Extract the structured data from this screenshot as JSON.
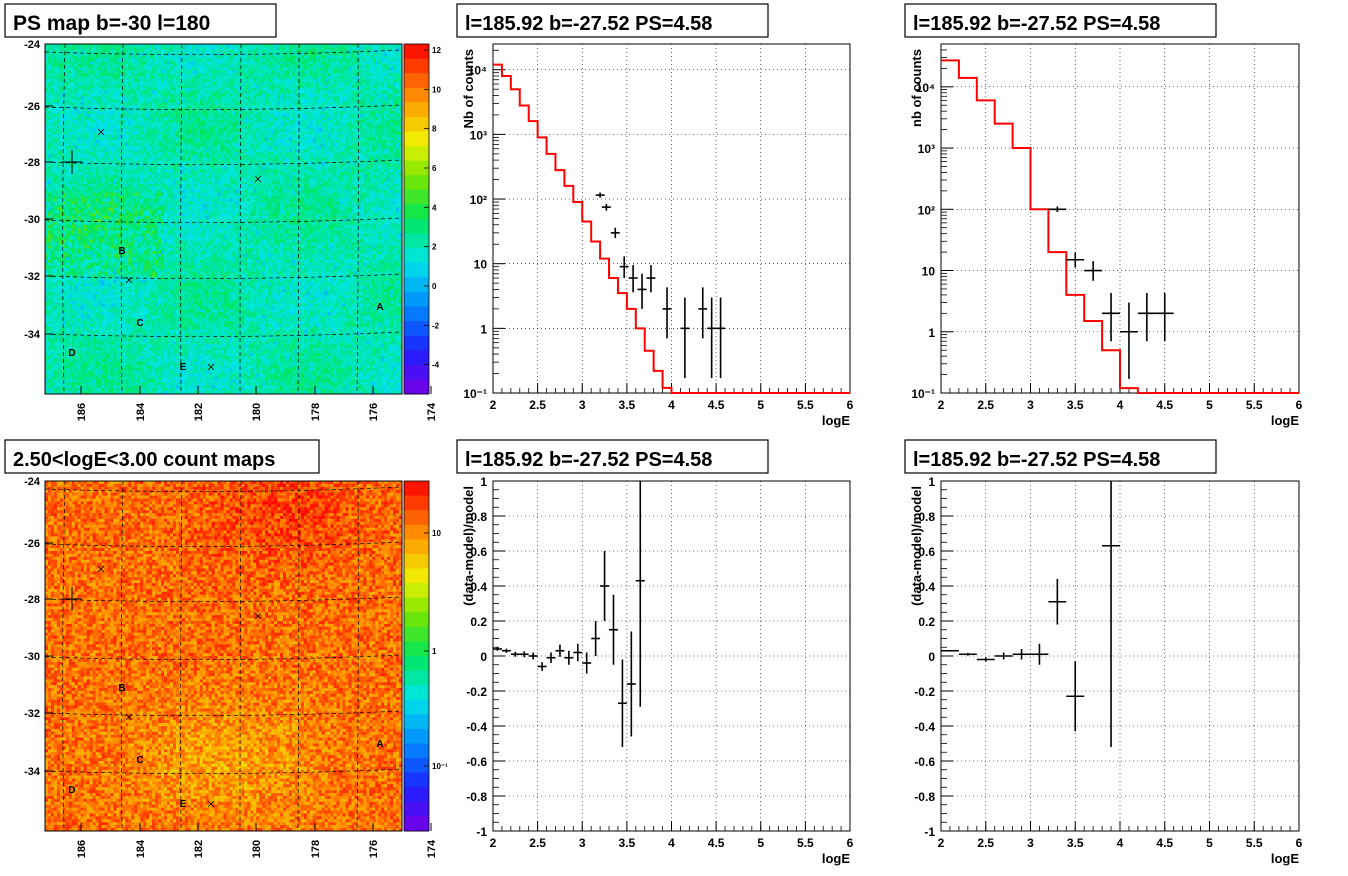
{
  "panels": {
    "map_top": {
      "title": "PS map b=-30 l=180",
      "yticks": [
        "-24",
        "-26",
        "-28",
        "-30",
        "-32",
        "-34"
      ],
      "xticks": [
        "186",
        "184",
        "182",
        "180",
        "178",
        "176",
        "174"
      ],
      "zticks": [
        "12",
        "10",
        "8",
        "6",
        "4",
        "2",
        "0",
        "-2",
        "-4"
      ],
      "labels": [
        "A",
        "B",
        "C",
        "D",
        "E"
      ]
    },
    "map_bottom": {
      "title": "2.50<logE<3.00 count maps",
      "yticks": [
        "-24",
        "-26",
        "-28",
        "-30",
        "-32",
        "-34"
      ],
      "xticks": [
        "186",
        "184",
        "182",
        "180",
        "178",
        "176",
        "174"
      ],
      "zticks": [
        "10",
        "1",
        "10⁻¹"
      ],
      "labels": [
        "A",
        "B",
        "C",
        "D",
        "E"
      ]
    }
  },
  "chart_data": [
    {
      "type": "heatmap",
      "title": "PS map b=-30 l=180",
      "xlabel": "",
      "ylabel": "",
      "xlim": [
        187.5,
        172.5
      ],
      "ylim": [
        -36,
        -23.8
      ],
      "zlim": [
        -5,
        12
      ],
      "colormap": "rainbow",
      "dominant_value_range": [
        -1,
        1
      ],
      "points": [
        {
          "l": 186.7,
          "b": -27.5,
          "marker": "+"
        },
        {
          "l": 186.3,
          "b": -28.5,
          "marker": "x"
        },
        {
          "l": 184.9,
          "b": -32.0,
          "marker": "x"
        },
        {
          "l": 178.4,
          "b": -28.6,
          "marker": "x"
        },
        {
          "l": 180.6,
          "b": -35.1,
          "marker": "x"
        }
      ],
      "labeled_sources": [
        {
          "label": "A",
          "l": 173.7,
          "b": -33.6
        },
        {
          "label": "B",
          "l": 184.1,
          "b": -31.2
        },
        {
          "label": "C",
          "l": 183.2,
          "b": -33.4
        },
        {
          "label": "D",
          "l": 186.3,
          "b": -34.5
        },
        {
          "label": "E",
          "l": 181.7,
          "b": -35.0
        }
      ]
    },
    {
      "type": "bar",
      "title": "l=185.92 b=-27.52 PS=4.58",
      "xlabel": "logE",
      "ylabel": "Nb of counts",
      "xlim": [
        2,
        6
      ],
      "ylim": [
        0.1,
        25000
      ],
      "yscale": "log",
      "x_ticks": [
        2,
        2.5,
        3,
        3.5,
        4,
        4.5,
        5,
        5.5,
        6
      ],
      "y_ticks": [
        "10⁻¹",
        "1",
        "10",
        "10²",
        "10³",
        "10⁴"
      ],
      "grid": true,
      "series": [
        {
          "role": "model",
          "style": "step",
          "color": "#ff0000",
          "bin_edges": [
            2,
            2.1,
            2.2,
            2.3,
            2.4,
            2.5,
            2.6,
            2.7,
            2.8,
            2.9,
            3.0,
            3.1,
            3.2,
            3.3,
            3.4,
            3.5,
            3.6,
            3.7,
            3.8,
            3.9,
            4.0,
            4.1,
            4.2,
            4.3,
            6
          ],
          "values": [
            12000,
            8000,
            5000,
            2800,
            1600,
            900,
            500,
            280,
            160,
            90,
            45,
            22,
            12,
            6,
            3.5,
            2.0,
            1.0,
            0.45,
            0.22,
            0.12,
            0.06,
            0.03,
            0.015,
            0.1
          ]
        },
        {
          "role": "data",
          "style": "errorbar",
          "color": "#000000",
          "x": [
            3.2,
            3.27,
            3.37,
            3.47,
            3.57,
            3.67,
            3.77,
            3.95,
            4.15,
            4.35,
            4.45,
            4.55
          ],
          "y": [
            115,
            75,
            30,
            9,
            6,
            4,
            6,
            2,
            1,
            2,
            1,
            1
          ],
          "y_err_low": [
            10,
            9,
            5,
            3,
            2.4,
            2,
            2.4,
            1.3,
            0.83,
            1.3,
            0.83,
            0.83
          ],
          "y_err_high": [
            11,
            9,
            6,
            4,
            3.5,
            3,
            3.5,
            2.3,
            2.0,
            2.3,
            2.0,
            2.0
          ],
          "x_halfwidth": 0.05
        }
      ]
    },
    {
      "type": "bar",
      "title": "l=185.92 b=-27.52 PS=4.58",
      "xlabel": "logE",
      "ylabel": "nb of counts",
      "xlim": [
        2,
        6
      ],
      "ylim": [
        0.1,
        50000
      ],
      "yscale": "log",
      "x_ticks": [
        2,
        2.5,
        3,
        3.5,
        4,
        4.5,
        5,
        5.5,
        6
      ],
      "y_ticks": [
        "10⁻¹",
        "1",
        "10",
        "10²",
        "10³",
        "10⁴"
      ],
      "grid": true,
      "series": [
        {
          "role": "model",
          "style": "step",
          "color": "#ff0000",
          "bin_edges": [
            2,
            2.2,
            2.4,
            2.6,
            2.8,
            3.0,
            3.2,
            3.4,
            3.6,
            3.8,
            4.0,
            4.2,
            6
          ],
          "values": [
            27000,
            14000,
            6000,
            2500,
            1000,
            100,
            20,
            4,
            1.5,
            0.5,
            0.12,
            0.1
          ],
          "extra_steps": [
            [
              3.6,
              3.7,
              4
            ],
            [
              3.7,
              3.8,
              2
            ]
          ]
        },
        {
          "role": "data",
          "style": "errorbar",
          "color": "#000000",
          "x": [
            3.3,
            3.5,
            3.7,
            3.9,
            4.1,
            4.3,
            4.5
          ],
          "y": [
            100,
            15,
            10,
            2,
            1,
            2,
            2
          ],
          "y_err_low": [
            10,
            3.8,
            3.2,
            1.3,
            0.83,
            1.3,
            1.3
          ],
          "y_err_high": [
            11,
            4.8,
            4.2,
            2.3,
            2.0,
            2.3,
            2.3
          ],
          "x_halfwidth": 0.1
        }
      ]
    },
    {
      "type": "heatmap",
      "title": "2.50<logE<3.00 count maps",
      "xlabel": "",
      "ylabel": "",
      "xlim": [
        187.5,
        172.5
      ],
      "ylim": [
        -36,
        -23.8
      ],
      "zscale": "log",
      "zlim": [
        0.01,
        40
      ],
      "colormap": "rainbow",
      "dominant_value_range": [
        4,
        30
      ],
      "labeled_sources": [
        {
          "label": "A",
          "l": 173.7,
          "b": -33.6
        },
        {
          "label": "B",
          "l": 184.1,
          "b": -31.2
        },
        {
          "label": "C",
          "l": 183.2,
          "b": -33.4
        },
        {
          "label": "D",
          "l": 186.3,
          "b": -34.5
        },
        {
          "label": "E",
          "l": 181.7,
          "b": -35.0
        }
      ]
    },
    {
      "type": "scatter",
      "title": "l=185.92 b=-27.52 PS=4.58",
      "xlabel": "logE",
      "ylabel": "(data-model)/model",
      "xlim": [
        2,
        6
      ],
      "ylim": [
        -1,
        1
      ],
      "x_ticks": [
        2,
        2.5,
        3,
        3.5,
        4,
        4.5,
        5,
        5.5,
        6
      ],
      "y_ticks": [
        -1,
        -0.8,
        -0.6,
        -0.4,
        -0.2,
        0,
        0.2,
        0.4,
        0.6,
        0.8,
        1
      ],
      "grid": true,
      "series": [
        {
          "style": "errorbar",
          "color": "#000000",
          "x": [
            2.05,
            2.15,
            2.25,
            2.35,
            2.45,
            2.55,
            2.65,
            2.75,
            2.85,
            2.95,
            3.05,
            3.15,
            3.25,
            3.35,
            3.45,
            3.55,
            3.65
          ],
          "y": [
            0.04,
            0.03,
            0.01,
            0.01,
            0.0,
            -0.06,
            -0.01,
            0.03,
            -0.01,
            0.02,
            -0.04,
            0.1,
            0.4,
            0.15,
            -0.27,
            -0.16,
            0.43
          ],
          "y_err": [
            0.01,
            0.012,
            0.014,
            0.017,
            0.02,
            0.025,
            0.03,
            0.035,
            0.04,
            0.05,
            0.06,
            0.1,
            0.2,
            0.2,
            0.25,
            0.3,
            0.72
          ],
          "x_halfwidth": 0.05
        }
      ]
    },
    {
      "type": "scatter",
      "title": "l=185.92 b=-27.52 PS=4.58",
      "xlabel": "logE",
      "ylabel": "(data-model)/model",
      "xlim": [
        2,
        6
      ],
      "ylim": [
        -1,
        1
      ],
      "x_ticks": [
        2,
        2.5,
        3,
        3.5,
        4,
        4.5,
        5,
        5.5,
        6
      ],
      "y_ticks": [
        -1,
        -0.8,
        -0.6,
        -0.4,
        -0.2,
        0,
        0.2,
        0.4,
        0.6,
        0.8,
        1
      ],
      "grid": true,
      "series": [
        {
          "style": "errorbar",
          "color": "#000000",
          "x": [
            2.1,
            2.3,
            2.5,
            2.7,
            2.9,
            3.1,
            3.3,
            3.5,
            3.9
          ],
          "y": [
            0.03,
            0.01,
            -0.02,
            0.0,
            0.01,
            0.01,
            0.31,
            -0.23,
            0.63
          ],
          "y_err": [
            0.005,
            0.008,
            0.012,
            0.02,
            0.03,
            0.06,
            0.13,
            0.2,
            1.15
          ],
          "x_halfwidth": 0.1
        }
      ]
    }
  ]
}
